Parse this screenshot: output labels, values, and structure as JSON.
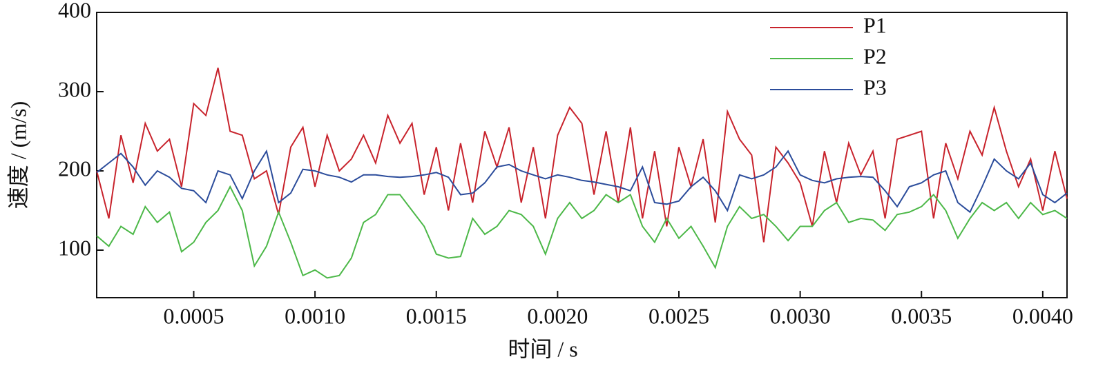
{
  "chart_data": {
    "type": "line",
    "xlabel": "时间 / s",
    "ylabel": "速度 / (m/s)",
    "x": [
      0.0001,
      0.00015,
      0.0002,
      0.00025,
      0.0003,
      0.00035,
      0.0004,
      0.00045,
      0.0005,
      0.00055,
      0.0006,
      0.00065,
      0.0007,
      0.00075,
      0.0008,
      0.00085,
      0.0009,
      0.00095,
      0.001,
      0.00105,
      0.0011,
      0.00115,
      0.0012,
      0.00125,
      0.0013,
      0.00135,
      0.0014,
      0.00145,
      0.0015,
      0.00155,
      0.0016,
      0.00165,
      0.0017,
      0.00175,
      0.0018,
      0.00185,
      0.0019,
      0.00195,
      0.002,
      0.00205,
      0.0021,
      0.00215,
      0.0022,
      0.00225,
      0.0023,
      0.00235,
      0.0024,
      0.00245,
      0.0025,
      0.00255,
      0.0026,
      0.00265,
      0.0027,
      0.00275,
      0.0028,
      0.00285,
      0.0029,
      0.00295,
      0.003,
      0.00305,
      0.0031,
      0.00315,
      0.0032,
      0.00325,
      0.0033,
      0.00335,
      0.0034,
      0.00345,
      0.0035,
      0.00355,
      0.0036,
      0.00365,
      0.0037,
      0.00375,
      0.0038,
      0.00385,
      0.0039,
      0.00395,
      0.004,
      0.00405,
      0.0041
    ],
    "series": [
      {
        "name": "P1",
        "color": "#c8232c",
        "values": [
          200,
          140,
          245,
          185,
          260,
          225,
          240,
          180,
          285,
          270,
          330,
          250,
          245,
          190,
          200,
          145,
          230,
          255,
          180,
          245,
          200,
          215,
          245,
          210,
          270,
          235,
          260,
          170,
          230,
          150,
          235,
          160,
          250,
          205,
          255,
          160,
          230,
          140,
          245,
          280,
          260,
          170,
          250,
          160,
          255,
          140,
          225,
          130,
          230,
          180,
          240,
          135,
          275,
          240,
          220,
          110,
          230,
          210,
          185,
          130,
          225,
          160,
          235,
          195,
          225,
          140,
          240,
          245,
          250,
          140,
          235,
          190,
          250,
          220,
          280,
          225,
          180,
          215,
          150,
          225,
          165
        ]
      },
      {
        "name": "P2",
        "color": "#4cb848",
        "values": [
          118,
          105,
          130,
          120,
          155,
          135,
          148,
          98,
          110,
          135,
          150,
          180,
          150,
          80,
          105,
          148,
          110,
          68,
          75,
          65,
          68,
          90,
          135,
          145,
          170,
          170,
          150,
          130,
          95,
          90,
          92,
          140,
          120,
          130,
          150,
          145,
          130,
          95,
          140,
          160,
          140,
          150,
          170,
          160,
          170,
          130,
          110,
          140,
          115,
          130,
          105,
          78,
          130,
          155,
          140,
          145,
          130,
          112,
          130,
          130,
          150,
          160,
          135,
          140,
          138,
          125,
          145,
          148,
          155,
          170,
          150,
          115,
          140,
          160,
          150,
          160,
          140,
          160,
          145,
          150,
          140
        ]
      },
      {
        "name": "P3",
        "color": "#2b4c9b",
        "values": [
          198,
          210,
          222,
          205,
          182,
          200,
          192,
          178,
          175,
          160,
          200,
          195,
          165,
          200,
          225,
          160,
          172,
          202,
          200,
          195,
          192,
          186,
          195,
          195,
          193,
          192,
          193,
          195,
          198,
          192,
          170,
          172,
          185,
          205,
          208,
          200,
          195,
          190,
          195,
          192,
          188,
          186,
          183,
          180,
          175,
          205,
          160,
          158,
          162,
          180,
          192,
          175,
          150,
          195,
          190,
          195,
          205,
          225,
          195,
          188,
          185,
          190,
          192,
          193,
          192,
          175,
          155,
          180,
          185,
          195,
          200,
          160,
          148,
          180,
          215,
          200,
          190,
          210,
          170,
          160,
          172
        ]
      }
    ],
    "xlim": [
      0.0001,
      0.0041
    ],
    "xticks": [
      {
        "value": 0.0005,
        "label": "0.0005"
      },
      {
        "value": 0.001,
        "label": "0.0010"
      },
      {
        "value": 0.0015,
        "label": "0.0015"
      },
      {
        "value": 0.002,
        "label": "0.0020"
      },
      {
        "value": 0.0025,
        "label": "0.0025"
      },
      {
        "value": 0.003,
        "label": "0.0030"
      },
      {
        "value": 0.0035,
        "label": "0.0035"
      },
      {
        "value": 0.004,
        "label": "0.0040"
      }
    ],
    "ylim": [
      40,
      400
    ],
    "yticks": [
      100,
      200,
      300,
      400
    ],
    "legend": "upper right",
    "grid": false
  }
}
